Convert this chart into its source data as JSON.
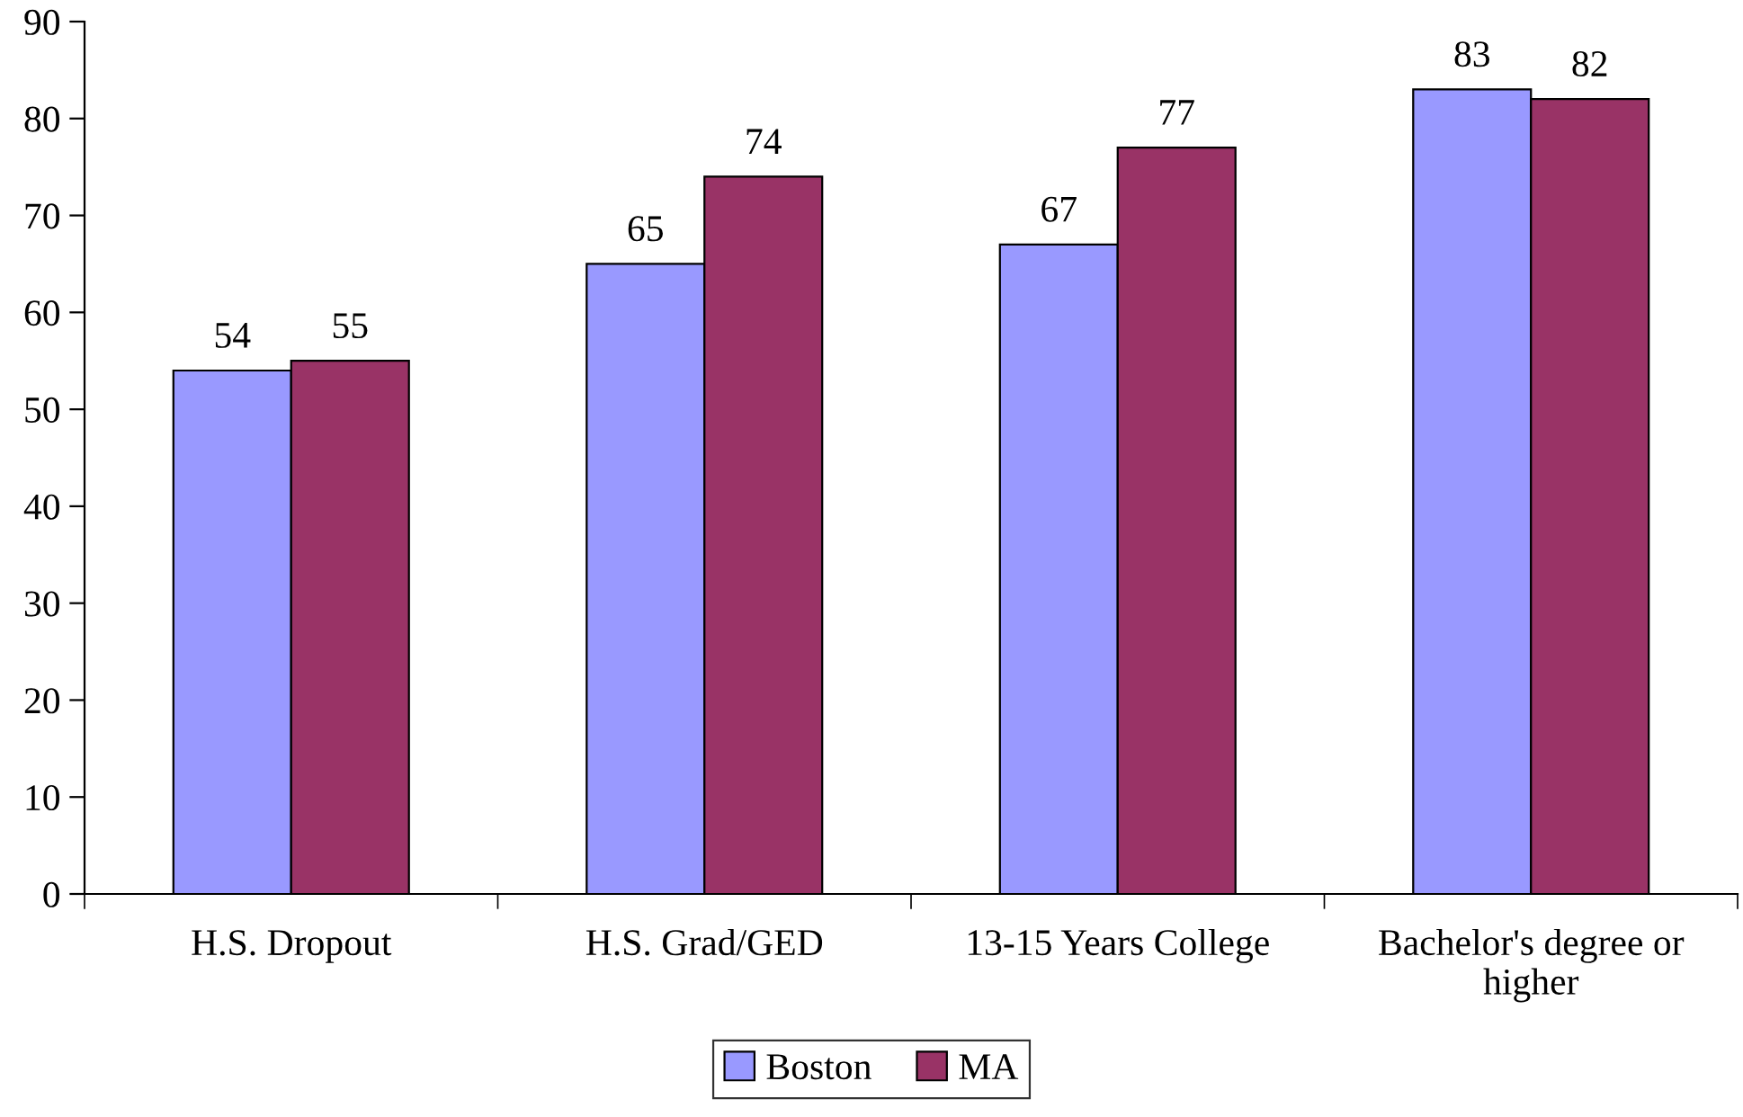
{
  "chart_data": {
    "type": "bar",
    "categories": [
      "H.S. Dropout",
      "H.S. Grad/GED",
      "13-15 Years College",
      "Bachelor's degree or\nhigher"
    ],
    "series": [
      {
        "name": "Boston",
        "color": "#9999ff",
        "values": [
          54,
          65,
          67,
          83
        ]
      },
      {
        "name": "MA",
        "color": "#993366",
        "values": [
          55,
          74,
          77,
          82
        ]
      }
    ],
    "ylim": [
      0,
      90
    ],
    "yticks": [
      0,
      10,
      20,
      30,
      40,
      50,
      60,
      70,
      80,
      90
    ],
    "data_labels": true,
    "grid": false,
    "legend": "bottom"
  }
}
